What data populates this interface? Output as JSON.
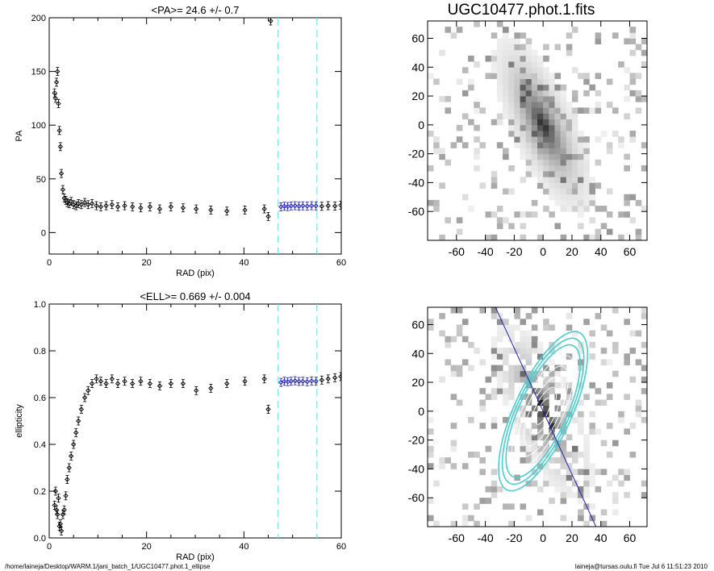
{
  "footer": {
    "path": "/home/laineja/Desktop/WARM.1/jani_batch_1/UGC10477.phot.1_ellipse",
    "user_time": "laineja@tursas.oulu.fi  Tue Jul  6 11:51:23 2010"
  },
  "chart_data": [
    {
      "id": "pa",
      "type": "scatter",
      "title": "<PA>=  24.6 +/-   0.7",
      "xlabel": "RAD (pix)",
      "ylabel": "PA",
      "xlim": [
        0,
        60
      ],
      "ylim": [
        -20,
        200
      ],
      "xticks": [
        0,
        20,
        40,
        60
      ],
      "yticks": [
        0,
        50,
        100,
        150,
        200
      ],
      "vlines": [
        47,
        55
      ],
      "vline_color": "#7fe3e8",
      "series": [
        {
          "color": "#000000",
          "x": [
            1.1,
            1.3,
            1.5,
            1.7,
            1.9,
            2.1,
            2.3,
            2.5,
            2.8,
            3.1,
            3.4,
            3.7,
            4.1,
            4.5,
            5,
            5.5,
            6,
            6.6,
            7.3,
            8,
            8.8,
            9.7,
            10.6,
            11.7,
            12.9,
            14.1,
            15.5,
            17.1,
            18.8,
            20.7,
            22.7,
            25,
            27.5,
            30.2,
            33.2,
            36.5,
            40.2,
            44.2
          ],
          "y": [
            130,
            125,
            140,
            150,
            120,
            95,
            80,
            55,
            40,
            32,
            30,
            28,
            27,
            29,
            26,
            25,
            27,
            26,
            28,
            26,
            27,
            25,
            24,
            25,
            26,
            24,
            25,
            24,
            23,
            24,
            22,
            24,
            23,
            22,
            21,
            20,
            21,
            22
          ]
        },
        {
          "color": "#000000",
          "x": [
            45,
            45.5
          ],
          "y": [
            15,
            197
          ]
        },
        {
          "color": "#1d1db5",
          "x": [
            47.6,
            48.3,
            49,
            49.7,
            50.5,
            51.3,
            52.1,
            53,
            53.9,
            54.8
          ],
          "y": [
            24,
            24.5,
            24.2,
            24.8,
            25,
            24.6,
            24.9,
            24.7,
            25,
            24.8
          ]
        },
        {
          "color": "#000000",
          "x": [
            56,
            57.3,
            58.7,
            59.9
          ],
          "y": [
            24.5,
            25,
            24.7,
            25.5
          ]
        }
      ]
    },
    {
      "id": "ell",
      "type": "scatter",
      "title": "<ELL>= 0.669 +/-  0.004",
      "xlabel": "RAD (pix)",
      "ylabel": "ellipticity",
      "xlim": [
        0,
        60
      ],
      "ylim": [
        0,
        1
      ],
      "xticks": [
        0,
        20,
        40,
        60
      ],
      "yticks": [
        0.0,
        0.2,
        0.4,
        0.6,
        0.8,
        1.0
      ],
      "vlines": [
        47,
        55
      ],
      "vline_color": "#7fe3e8",
      "series": [
        {
          "color": "#000000",
          "x": [
            1.1,
            1.3,
            1.5,
            1.7,
            1.9,
            2.1,
            2.3,
            2.5,
            2.8,
            3.1,
            3.4,
            3.7,
            4.1,
            4.5,
            5,
            5.5,
            6,
            6.6,
            7.3,
            8,
            8.8,
            9.7,
            10.6,
            11.7,
            12.9,
            14.1,
            15.5,
            17.1,
            18.8,
            20.7,
            22.7,
            25,
            27.5,
            30.2,
            33.2,
            36.5,
            40.2,
            44.2
          ],
          "y": [
            0.14,
            0.2,
            0.12,
            0.1,
            0.17,
            0.05,
            0.06,
            0.03,
            0.1,
            0.12,
            0.18,
            0.25,
            0.3,
            0.35,
            0.4,
            0.45,
            0.5,
            0.55,
            0.6,
            0.63,
            0.66,
            0.68,
            0.67,
            0.66,
            0.68,
            0.66,
            0.67,
            0.66,
            0.67,
            0.66,
            0.65,
            0.66,
            0.66,
            0.63,
            0.64,
            0.66,
            0.67,
            0.68
          ]
        },
        {
          "color": "#000000",
          "x": [
            45
          ],
          "y": [
            0.55
          ]
        },
        {
          "color": "#1d1db5",
          "x": [
            47.6,
            48.3,
            49,
            49.7,
            50.5,
            51.3,
            52.1,
            53,
            53.9,
            54.8
          ],
          "y": [
            0.665,
            0.67,
            0.668,
            0.67,
            0.672,
            0.669,
            0.67,
            0.668,
            0.671,
            0.67
          ]
        },
        {
          "color": "#000000",
          "x": [
            56,
            57.3,
            58.7,
            59.9
          ],
          "y": [
            0.675,
            0.68,
            0.685,
            0.69
          ]
        }
      ]
    },
    {
      "id": "img1",
      "type": "heatmap",
      "title": "UGC10477.phot.1.fits",
      "xlim": [
        -80,
        72
      ],
      "ylim": [
        -80,
        72
      ],
      "xticks": [
        -60,
        -40,
        -20,
        0,
        20,
        40,
        60
      ],
      "yticks": [
        -60,
        -40,
        -20,
        0,
        20,
        40,
        60
      ]
    },
    {
      "id": "img2",
      "type": "heatmap",
      "title": "",
      "xlim": [
        -80,
        72
      ],
      "ylim": [
        -80,
        72
      ],
      "xticks": [
        -60,
        -40,
        -20,
        0,
        20,
        40,
        60
      ],
      "yticks": [
        -60,
        -40,
        -20,
        0,
        20,
        40,
        60
      ],
      "ellipse_pa": 24.6,
      "ellipse_ell": 0.669,
      "ellipse_color": "#48d0d0",
      "line_color": "#2424b0"
    }
  ]
}
